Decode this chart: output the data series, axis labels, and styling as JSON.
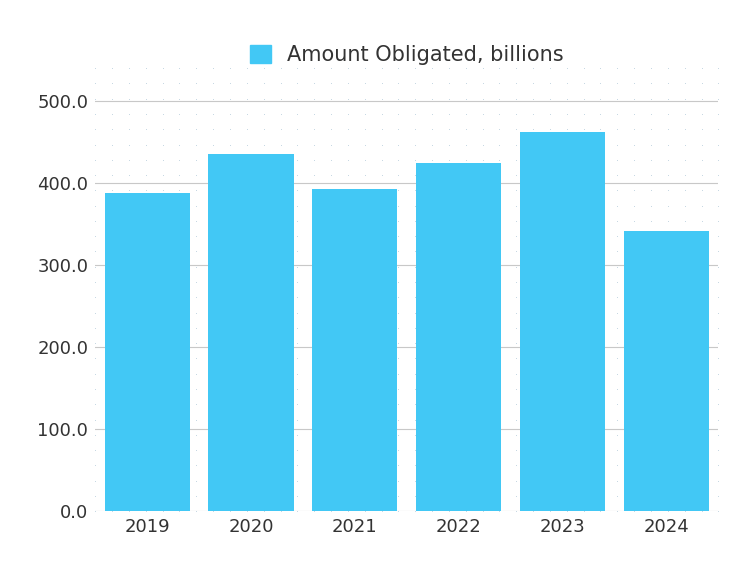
{
  "categories": [
    "2019",
    "2020",
    "2021",
    "2022",
    "2023",
    "2024"
  ],
  "values": [
    388,
    435,
    393,
    425,
    462,
    342
  ],
  "bar_color": "#42C8F5",
  "legend_label": "Amount Obligated, billions",
  "ylim": [
    0,
    540
  ],
  "yticks": [
    0.0,
    100.0,
    200.0,
    300.0,
    400.0,
    500.0
  ],
  "background_color": "#ffffff",
  "dot_color": "#b0c8d8",
  "grid_color": "#c8c8c8",
  "legend_patch_color": "#42C8F5",
  "tick_label_fontsize": 13,
  "legend_fontsize": 15,
  "bar_width": 0.82,
  "title_text_color": "#333333",
  "legend_text_color": "#333333"
}
